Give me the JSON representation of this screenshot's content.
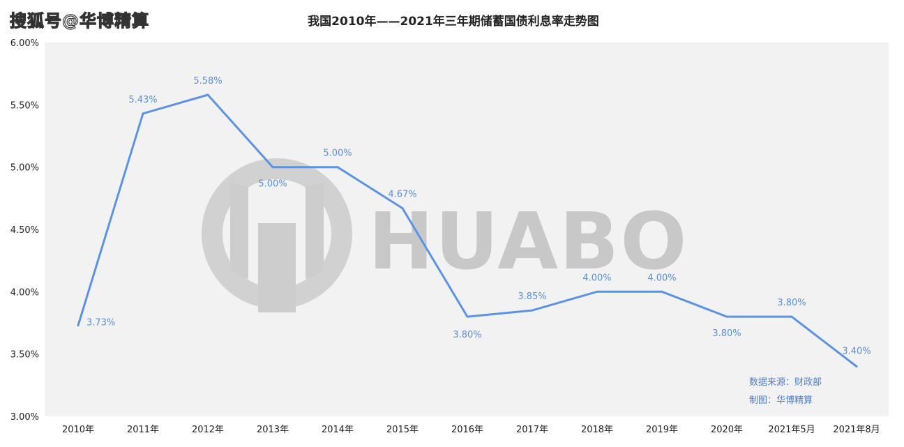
{
  "watermark_brand": "搜狐号@华博精算",
  "watermark_logo_text": "HUABO",
  "chart_data": {
    "type": "line",
    "title": "我国2010年——2021年三年期储蓄国债利息率走势图",
    "categories": [
      "2010年",
      "2011年",
      "2012年",
      "2013年",
      "2014年",
      "2015年",
      "2016年",
      "2017年",
      "2018年",
      "2019年",
      "2020年",
      "2021年5月",
      "2021年8月"
    ],
    "values": [
      3.73,
      5.43,
      5.58,
      5.0,
      5.0,
      4.67,
      3.8,
      3.85,
      4.0,
      4.0,
      3.8,
      3.8,
      3.4
    ],
    "data_labels": [
      "3.73%",
      "5.43%",
      "5.58%",
      "5.00%",
      "5.00%",
      "4.67%",
      "3.80%",
      "3.85%",
      "4.00%",
      "4.00%",
      "3.80%",
      "3.80%",
      "3.40%"
    ],
    "ylim": [
      3.0,
      6.0
    ],
    "y_ticks": [
      3.0,
      3.5,
      4.0,
      4.5,
      5.0,
      5.5,
      6.0
    ],
    "y_tick_labels": [
      "3.00%",
      "3.50%",
      "4.00%",
      "4.50%",
      "5.00%",
      "5.50%",
      "6.00%"
    ],
    "xlabel": "",
    "ylabel": "",
    "grid": false,
    "line_color": "#5b93e2",
    "plot_background": "#f2f2f2",
    "notes": [
      "数据来源：财政部",
      "制图：华博精算"
    ]
  }
}
